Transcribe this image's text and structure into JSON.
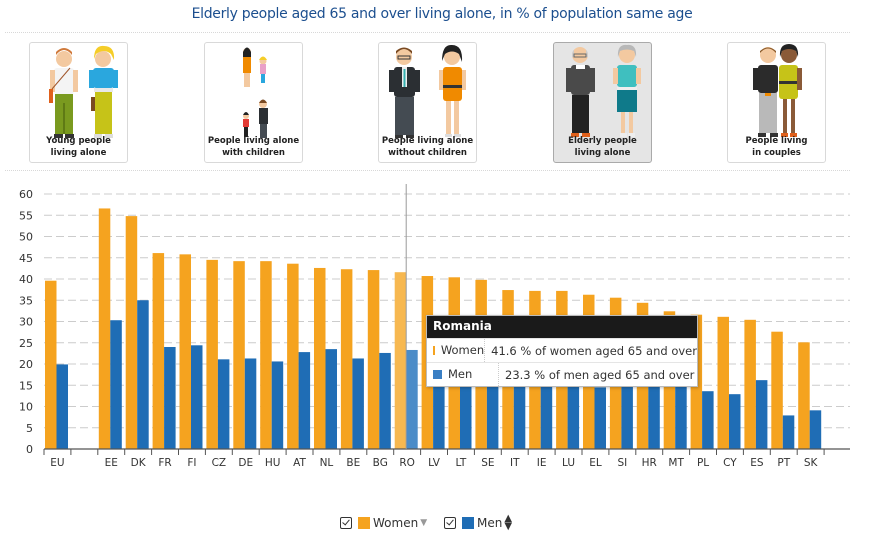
{
  "header": {
    "title": "Elderly people aged 65 and over living alone, in % of population same age"
  },
  "categories_cards": [
    {
      "label_line1": "Young people",
      "label_line2": "living alone",
      "active": false,
      "icon": "young-people-icon"
    },
    {
      "label_line1": "People living alone",
      "label_line2": "with children",
      "active": false,
      "icon": "parents-with-children-icon"
    },
    {
      "label_line1": "People living alone",
      "label_line2": "without children",
      "active": false,
      "icon": "adults-without-children-icon"
    },
    {
      "label_line1": "Elderly people",
      "label_line2": "living alone",
      "active": true,
      "icon": "elderly-people-icon"
    },
    {
      "label_line1": "People living",
      "label_line2": "in couples",
      "active": false,
      "icon": "couple-icon"
    }
  ],
  "colors": {
    "women": "#f5a31f",
    "men": "#1f6db5",
    "women_highlight": "#f7b850",
    "men_highlight": "#4b8cc8",
    "title": "#1c4f8f",
    "card_active_bg": "#e5e5e5"
  },
  "tooltip": {
    "country": "Romania",
    "rows": [
      {
        "series": "Women",
        "text": "41.6 % of women aged 65 and over"
      },
      {
        "series": "Men",
        "text": "23.3 % of men aged 65 and over"
      }
    ]
  },
  "legend": {
    "items": [
      {
        "label": "Women",
        "checked": true,
        "sort": "descending"
      },
      {
        "label": "Men",
        "checked": true,
        "sort": "both"
      }
    ]
  },
  "chart_data": {
    "type": "bar",
    "title": "Elderly people aged 65 and over living alone, in % of population same age",
    "xlabel": "",
    "ylabel": "",
    "ylim": [
      0,
      60
    ],
    "yticks": [
      0,
      5,
      10,
      15,
      20,
      25,
      30,
      35,
      40,
      45,
      50,
      55,
      60
    ],
    "grid": true,
    "legend_position": "bottom",
    "highlighted_category": "RO",
    "categories": [
      "EU",
      "",
      "EE",
      "DK",
      "FR",
      "FI",
      "CZ",
      "DE",
      "HU",
      "AT",
      "NL",
      "BE",
      "BG",
      "RO",
      "LV",
      "LT",
      "SE",
      "IT",
      "IE",
      "LU",
      "EL",
      "SI",
      "HR",
      "MT",
      "PL",
      "CY",
      "ES",
      "PT",
      "SK"
    ],
    "series": [
      {
        "name": "Women",
        "values": [
          39.6,
          null,
          56.6,
          54.8,
          46.1,
          45.8,
          44.5,
          44.2,
          44.2,
          43.6,
          42.6,
          42.3,
          42.1,
          41.6,
          40.7,
          40.4,
          39.8,
          37.4,
          37.2,
          37.2,
          36.3,
          35.6,
          34.4,
          32.4,
          31.6,
          31.1,
          30.4,
          27.6,
          25.1
        ]
      },
      {
        "name": "Men",
        "values": [
          19.9,
          null,
          30.3,
          35.0,
          24.0,
          24.4,
          21.1,
          21.3,
          20.6,
          22.8,
          23.5,
          21.3,
          22.6,
          23.3,
          16.5,
          17.0,
          19.0,
          17.5,
          18.5,
          17.0,
          14.5,
          15.5,
          16.5,
          16.0,
          13.6,
          12.9,
          16.2,
          7.9,
          9.1
        ]
      }
    ]
  }
}
